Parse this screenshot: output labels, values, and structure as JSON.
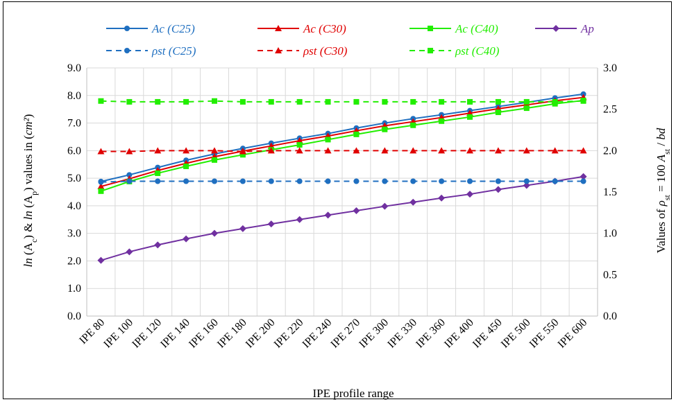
{
  "chart_data": {
    "type": "line",
    "xlabel": "IPE profile range",
    "ylabel_left": {
      "parts": [
        "ln",
        " (A",
        "c",
        ") & ",
        "ln",
        " (A",
        "p",
        ") values in (",
        "cm²",
        ")"
      ]
    },
    "ylabel_right": {
      "parts": [
        "Values of  ",
        "ρ",
        "st",
        " = 100 ",
        "A",
        "st",
        " / ",
        "bd"
      ]
    },
    "categories": [
      "IPE  80",
      "IPE 100",
      "IPE 120",
      "IPE 140",
      "IPE 160",
      "IPE 180",
      "IPE 200",
      "IPE 220",
      "IPE 240",
      "IPE 270",
      "IPE 300",
      "IPE 330",
      "IPE 360",
      "IPE 400",
      "IPE 450",
      "IPE 500",
      "IPE 550",
      "IPE 600"
    ],
    "y_left": {
      "min": 0,
      "max": 9,
      "step": 1,
      "ticks": [
        "0.0",
        "1.0",
        "2.0",
        "3.0",
        "4.0",
        "5.0",
        "6.0",
        "7.0",
        "8.0",
        "9.0"
      ]
    },
    "y_right": {
      "min": 0,
      "max": 3,
      "step": 0.5,
      "ticks": [
        "0.0",
        "0.5",
        "1.0",
        "1.5",
        "2.0",
        "2.5",
        "3.0"
      ]
    },
    "grid": true,
    "legend_position": "top",
    "series": [
      {
        "name": "Ac (C25)",
        "axis": "left",
        "color": "#1F6FC0",
        "marker": "circle",
        "dash": false,
        "values": [
          4.88,
          5.12,
          5.39,
          5.65,
          5.88,
          6.08,
          6.27,
          6.45,
          6.62,
          6.82,
          7.0,
          7.16,
          7.3,
          7.45,
          7.6,
          7.75,
          7.91,
          8.05
        ]
      },
      {
        "name": "Ac (C30)",
        "axis": "left",
        "color": "#E00000",
        "marker": "triangle",
        "dash": false,
        "values": [
          4.7,
          4.98,
          5.28,
          5.54,
          5.78,
          5.98,
          6.17,
          6.36,
          6.53,
          6.72,
          6.9,
          7.05,
          7.2,
          7.36,
          7.52,
          7.66,
          7.81,
          7.93
        ]
      },
      {
        "name": "Ac (C40)",
        "axis": "left",
        "color": "#22EE00",
        "marker": "square",
        "dash": false,
        "values": [
          4.53,
          4.88,
          5.18,
          5.43,
          5.66,
          5.85,
          6.03,
          6.21,
          6.4,
          6.59,
          6.77,
          6.92,
          7.07,
          7.22,
          7.39,
          7.54,
          7.7,
          7.82
        ]
      },
      {
        "name": "Ap",
        "axis": "left",
        "color": "#7030A0",
        "marker": "diamond",
        "dash": false,
        "values": [
          2.02,
          2.33,
          2.58,
          2.8,
          3.0,
          3.17,
          3.34,
          3.5,
          3.66,
          3.82,
          3.98,
          4.13,
          4.28,
          4.42,
          4.59,
          4.74,
          4.89,
          5.06
        ]
      },
      {
        "name": "ρst (C25)",
        "axis": "right",
        "color": "#1F6FC0",
        "marker": "circle",
        "dash": true,
        "values": [
          1.62,
          1.63,
          1.63,
          1.63,
          1.63,
          1.63,
          1.63,
          1.63,
          1.63,
          1.63,
          1.63,
          1.63,
          1.63,
          1.63,
          1.63,
          1.63,
          1.63,
          1.63
        ]
      },
      {
        "name": "ρst (C30)",
        "axis": "right",
        "color": "#E00000",
        "marker": "triangle",
        "dash": true,
        "values": [
          1.99,
          1.99,
          2.0,
          2.0,
          2.0,
          1.99,
          2.0,
          2.0,
          2.0,
          2.0,
          2.0,
          2.0,
          2.0,
          2.0,
          2.0,
          2.0,
          2.0,
          2.0
        ]
      },
      {
        "name": "ρst (C40)",
        "axis": "right",
        "color": "#22EE00",
        "marker": "square",
        "dash": true,
        "values": [
          2.6,
          2.59,
          2.59,
          2.59,
          2.6,
          2.59,
          2.59,
          2.59,
          2.59,
          2.59,
          2.59,
          2.59,
          2.59,
          2.59,
          2.59,
          2.59,
          2.59,
          2.6
        ]
      }
    ]
  }
}
